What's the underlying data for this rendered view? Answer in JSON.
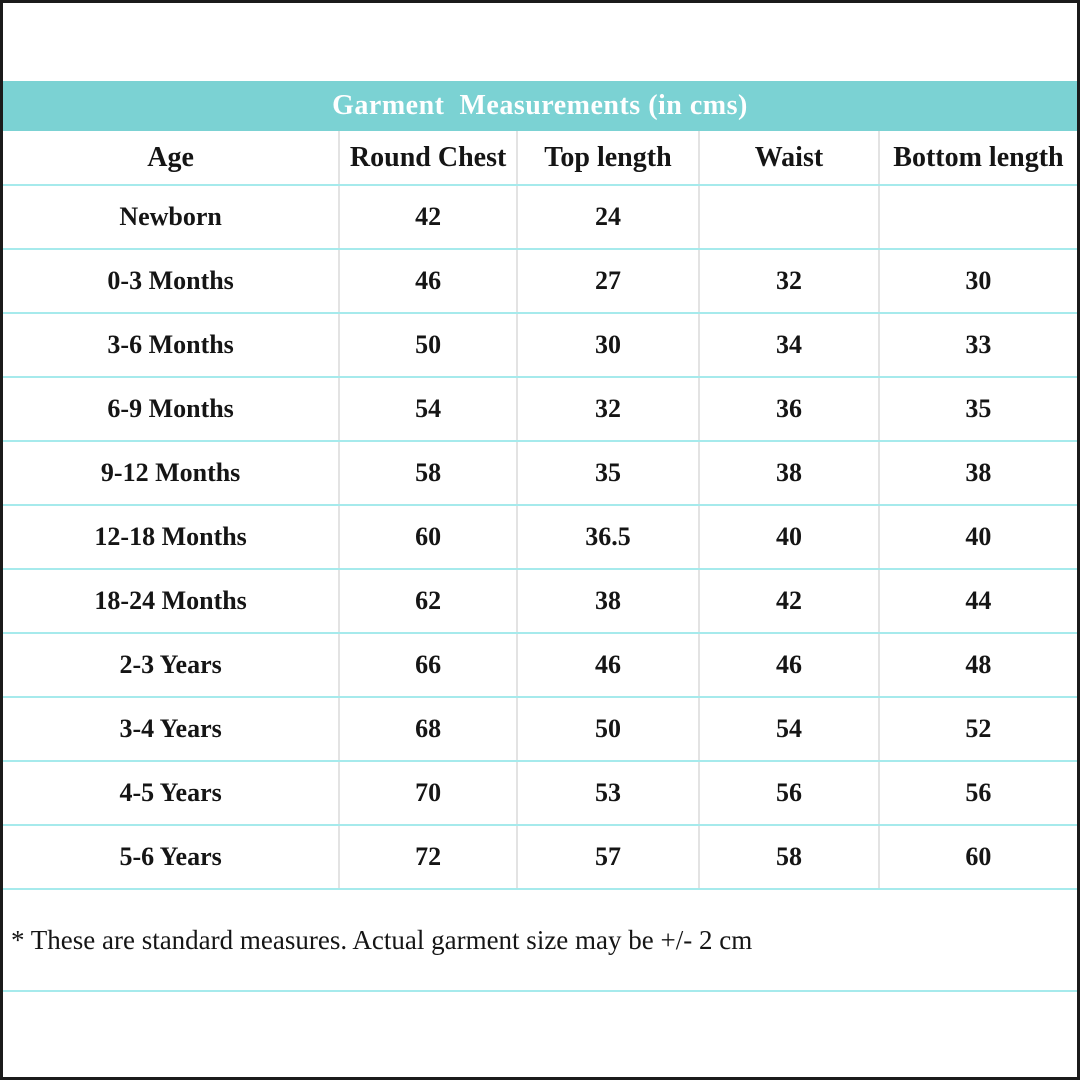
{
  "title": "Garment  Measurements (in cms)",
  "table": {
    "columns": [
      "Age",
      "Round Chest",
      "Top length",
      "Waist",
      "Bottom length"
    ],
    "rows": [
      {
        "age": "Newborn",
        "values": [
          "42",
          "24",
          "",
          ""
        ]
      },
      {
        "age": "0-3 Months",
        "values": [
          "46",
          "27",
          "32",
          "30"
        ]
      },
      {
        "age": "3-6 Months",
        "values": [
          "50",
          "30",
          "34",
          "33"
        ]
      },
      {
        "age": "6-9 Months",
        "values": [
          "54",
          "32",
          "36",
          "35"
        ]
      },
      {
        "age": "9-12 Months",
        "values": [
          "58",
          "35",
          "38",
          "38"
        ]
      },
      {
        "age": "12-18 Months",
        "values": [
          "60",
          "36.5",
          "40",
          "40"
        ]
      },
      {
        "age": "18-24 Months",
        "values": [
          "62",
          "38",
          "42",
          "44"
        ]
      },
      {
        "age": "2-3 Years",
        "values": [
          "66",
          "46",
          "46",
          "48"
        ]
      },
      {
        "age": "3-4 Years",
        "values": [
          "68",
          "50",
          "54",
          "52"
        ]
      },
      {
        "age": "4-5 Years",
        "values": [
          "70",
          "53",
          "56",
          "56"
        ]
      },
      {
        "age": "5-6 Years",
        "values": [
          "72",
          "57",
          "58",
          "60"
        ]
      }
    ]
  },
  "footnote": "* These are standard measures. Actual garment size may be +/- 2 cm",
  "colors": {
    "header_bg": "#7bd2d3",
    "row_line": "#a6eaec",
    "col_line": "#e3e3e3",
    "text": "#151515"
  }
}
